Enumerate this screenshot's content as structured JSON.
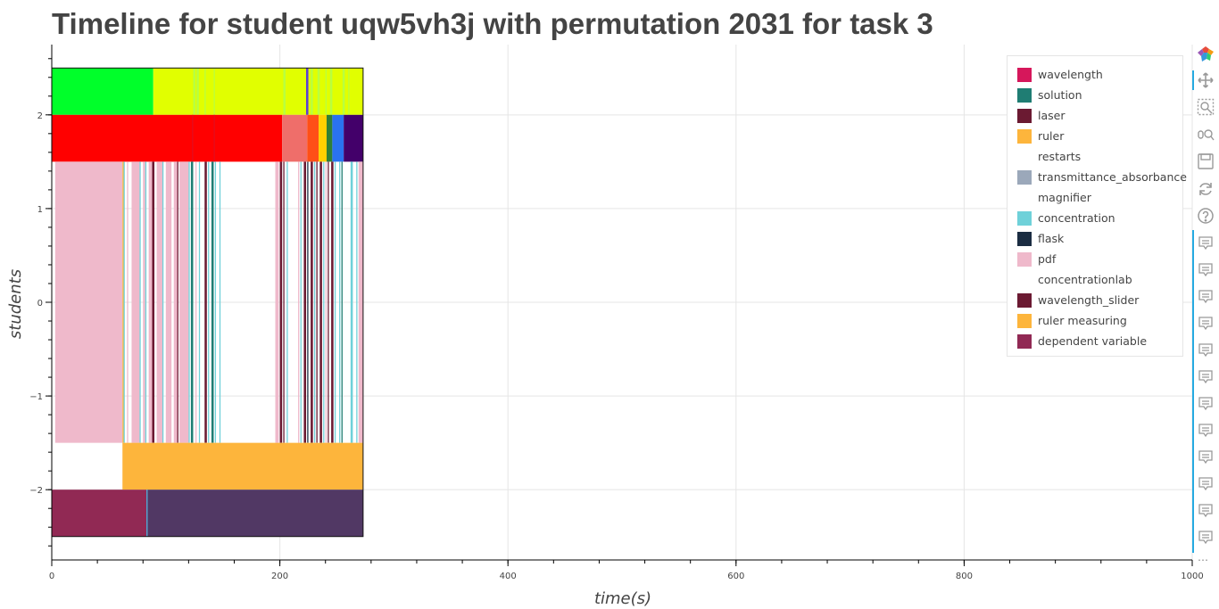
{
  "chart_data": {
    "type": "timeline",
    "title": "Timeline for student uqw5vh3j with permutation 2031 for task 3",
    "xlabel": "time(s)",
    "ylabel": "students",
    "xlim": [
      0,
      1000
    ],
    "ylim": [
      -2.75,
      2.75
    ],
    "x_ticks": [
      0,
      200,
      400,
      600,
      800,
      1000
    ],
    "y_ticks": [
      2,
      1,
      0,
      -1,
      -2
    ],
    "y_tick_labels": [
      "2",
      "1",
      "0",
      "−1",
      "−2"
    ],
    "grid": true,
    "legend_position": "top-right",
    "legend": [
      {
        "label": "wavelength",
        "color": "#d6175b"
      },
      {
        "label": "solution",
        "color": "#1f7d73"
      },
      {
        "label": "laser",
        "color": "#6b1a32"
      },
      {
        "label": "ruler",
        "color": "#fdb53c"
      },
      {
        "label": "restarts",
        "color": null
      },
      {
        "label": "transmittance_absorbance",
        "color": "#9ba8ba"
      },
      {
        "label": "magnifier",
        "color": null
      },
      {
        "label": "concentration",
        "color": "#6fd1d9"
      },
      {
        "label": "flask",
        "color": "#1b2d42"
      },
      {
        "label": "pdf",
        "color": "#efb9cb"
      },
      {
        "label": "concentrationlab",
        "color": null
      },
      {
        "label": "wavelength_slider",
        "color": "#6b1a32"
      },
      {
        "label": "ruler measuring",
        "color": "#fdb53c"
      },
      {
        "label": "dependent variable",
        "color": "#912954"
      }
    ],
    "rows": [
      {
        "y_range": [
          2,
          2.5
        ],
        "segments": [
          {
            "start": 0,
            "end": 89,
            "color": "#00ff2a"
          },
          {
            "start": 89,
            "end": 273,
            "color": "#e1ff00"
          },
          {
            "start": 124,
            "end": 126,
            "color": "#b8ff40"
          },
          {
            "start": 127,
            "end": 129,
            "color": "#b8ff40"
          },
          {
            "start": 134,
            "end": 135,
            "color": "#b8ff40"
          },
          {
            "start": 142,
            "end": 143,
            "color": "#b8ff40"
          },
          {
            "start": 203,
            "end": 205,
            "color": "#b8ff40"
          },
          {
            "start": 223,
            "end": 225,
            "color": "#5c3fd6"
          },
          {
            "start": 227,
            "end": 229,
            "color": "#b8ff40"
          },
          {
            "start": 233,
            "end": 235,
            "color": "#b8ff40"
          },
          {
            "start": 240,
            "end": 241,
            "color": "#b8ff40"
          },
          {
            "start": 244,
            "end": 246,
            "color": "#b8ff40"
          },
          {
            "start": 255,
            "end": 257,
            "color": "#b8ff40"
          },
          {
            "start": 260,
            "end": 261,
            "color": "#b8ff40"
          }
        ]
      },
      {
        "y_range": [
          1.5,
          2
        ],
        "segments": [
          {
            "start": 0,
            "end": 202,
            "color": "#ff0000"
          },
          {
            "start": 123,
            "end": 124,
            "color": "#e30d1e"
          },
          {
            "start": 142,
            "end": 143,
            "color": "#e30d1e"
          },
          {
            "start": 202,
            "end": 224,
            "color": "#ef6e6a"
          },
          {
            "start": 224,
            "end": 234,
            "color": "#ff4f17"
          },
          {
            "start": 234,
            "end": 241,
            "color": "#ffd000"
          },
          {
            "start": 241,
            "end": 246,
            "color": "#2f7f36"
          },
          {
            "start": 246,
            "end": 256,
            "color": "#2a72f0"
          },
          {
            "start": 256,
            "end": 273,
            "color": "#43006a"
          }
        ]
      },
      {
        "y_range": [
          -1.5,
          1.5
        ],
        "segments": [
          {
            "start": 3,
            "end": 62,
            "color": "#efb9cb"
          },
          {
            "start": 62,
            "end": 63,
            "color": "#fdb53c"
          },
          {
            "start": 63,
            "end": 64,
            "color": "#6fd1d9"
          },
          {
            "start": 66,
            "end": 67,
            "color": "#efb9cb"
          },
          {
            "start": 70,
            "end": 77,
            "color": "#efb9cb"
          },
          {
            "start": 77,
            "end": 78,
            "color": "#6fd1d9"
          },
          {
            "start": 80,
            "end": 82,
            "color": "#efb9cb"
          },
          {
            "start": 82,
            "end": 83,
            "color": "#6fd1d9"
          },
          {
            "start": 85,
            "end": 88,
            "color": "#efb9cb"
          },
          {
            "start": 88,
            "end": 90,
            "color": "#6b1a32"
          },
          {
            "start": 92,
            "end": 97,
            "color": "#efb9cb"
          },
          {
            "start": 97,
            "end": 98,
            "color": "#6fd1d9"
          },
          {
            "start": 100,
            "end": 105,
            "color": "#efb9cb"
          },
          {
            "start": 107,
            "end": 110,
            "color": "#efb9cb"
          },
          {
            "start": 110,
            "end": 111,
            "color": "#6b1a32"
          },
          {
            "start": 112,
            "end": 120,
            "color": "#efb9cb"
          },
          {
            "start": 120,
            "end": 121,
            "color": "#6fd1d9"
          },
          {
            "start": 122,
            "end": 124,
            "color": "#1f7d73"
          },
          {
            "start": 126,
            "end": 127,
            "color": "#efb9cb"
          },
          {
            "start": 129,
            "end": 130,
            "color": "#6fd1d9"
          },
          {
            "start": 134,
            "end": 136,
            "color": "#6b1a32"
          },
          {
            "start": 137,
            "end": 138,
            "color": "#6fd1d9"
          },
          {
            "start": 140,
            "end": 142,
            "color": "#1f7d73"
          },
          {
            "start": 143,
            "end": 144,
            "color": "#6fd1d9"
          },
          {
            "start": 147,
            "end": 148,
            "color": "#6fd1d9"
          },
          {
            "start": 196,
            "end": 199,
            "color": "#efb9cb"
          },
          {
            "start": 200,
            "end": 202,
            "color": "#6b1a32"
          },
          {
            "start": 203,
            "end": 204,
            "color": "#6b1a32"
          },
          {
            "start": 206,
            "end": 207,
            "color": "#6fd1d9"
          },
          {
            "start": 216,
            "end": 217,
            "color": "#efb9cb"
          },
          {
            "start": 218,
            "end": 219,
            "color": "#6fd1d9"
          },
          {
            "start": 221,
            "end": 223,
            "color": "#6b1a32"
          },
          {
            "start": 224,
            "end": 225,
            "color": "#1b2d42"
          },
          {
            "start": 227,
            "end": 229,
            "color": "#6b1a32"
          },
          {
            "start": 230,
            "end": 231,
            "color": "#6fd1d9"
          },
          {
            "start": 232,
            "end": 233,
            "color": "#6b1a32"
          },
          {
            "start": 235,
            "end": 237,
            "color": "#6b1a32"
          },
          {
            "start": 238,
            "end": 239,
            "color": "#6fd1d9"
          },
          {
            "start": 240,
            "end": 241,
            "color": "#efb9cb"
          },
          {
            "start": 242,
            "end": 243,
            "color": "#6b1a32"
          },
          {
            "start": 245,
            "end": 247,
            "color": "#6b1a32"
          },
          {
            "start": 248,
            "end": 249,
            "color": "#6fd1d9"
          },
          {
            "start": 252,
            "end": 253,
            "color": "#6fd1d9"
          },
          {
            "start": 254,
            "end": 255,
            "color": "#1f7d73"
          },
          {
            "start": 262,
            "end": 264,
            "color": "#6fd1d9"
          },
          {
            "start": 267,
            "end": 268,
            "color": "#6fd1d9"
          },
          {
            "start": 269,
            "end": 273,
            "color": "#efb9cb"
          }
        ]
      },
      {
        "y_range": [
          -2,
          -1.5
        ],
        "segments": [
          {
            "start": 62,
            "end": 273,
            "color": "#fdb53c"
          }
        ]
      },
      {
        "y_range": [
          -2.5,
          -2
        ],
        "segments": [
          {
            "start": 0,
            "end": 83,
            "color": "#912954"
          },
          {
            "start": 83,
            "end": 84,
            "color": "#3f9fcf"
          },
          {
            "start": 84,
            "end": 273,
            "color": "#513864"
          }
        ]
      }
    ],
    "outline_x_range": [
      0,
      273
    ],
    "outline_y_range": [
      -2.5,
      2.5
    ]
  },
  "toolbar": {
    "tools": [
      {
        "name": "bokeh-logo-icon"
      },
      {
        "name": "pan-tool-icon"
      },
      {
        "name": "box-zoom-tool-icon"
      },
      {
        "name": "wheel-zoom-tool-icon"
      },
      {
        "name": "save-tool-icon"
      },
      {
        "name": "reset-tool-icon"
      },
      {
        "name": "help-tool-icon"
      }
    ],
    "hover_tool_count": 12,
    "more_label": "…"
  }
}
